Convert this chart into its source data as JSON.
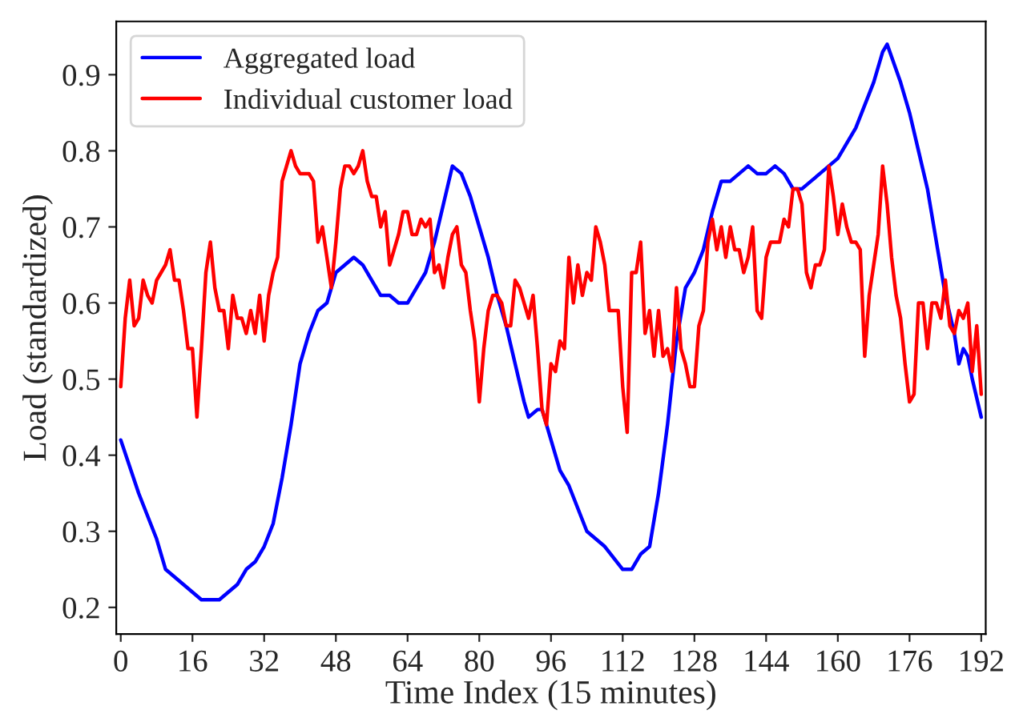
{
  "chart_data": {
    "type": "line",
    "xlabel": "Time Index (15 minutes)",
    "ylabel": "Load (standardized)",
    "xlim": [
      -1,
      193
    ],
    "xticks": [
      0,
      16,
      32,
      48,
      64,
      80,
      96,
      112,
      128,
      144,
      160,
      176,
      192
    ],
    "ylim": [
      0.165,
      0.97
    ],
    "yticks": [
      0.2,
      0.3,
      0.4,
      0.5,
      0.6,
      0.7,
      0.8,
      0.9
    ],
    "grid": false,
    "legend": "top left",
    "marker": "none",
    "line_style": "solid",
    "series": [
      {
        "name": "Aggregated load",
        "color": "#0000ff",
        "x": [
          0,
          4,
          8,
          10,
          12,
          14,
          16,
          18,
          20,
          22,
          24,
          26,
          28,
          30,
          32,
          34,
          36,
          38,
          40,
          42,
          44,
          46,
          48,
          50,
          52,
          54,
          56,
          58,
          60,
          62,
          64,
          66,
          68,
          70,
          72,
          74,
          76,
          78,
          80,
          82,
          84,
          86,
          88,
          90,
          91,
          93,
          94,
          96,
          98,
          100,
          104,
          108,
          112,
          114,
          116,
          118,
          120,
          122,
          124,
          126,
          128,
          130,
          132,
          134,
          136,
          138,
          140,
          142,
          144,
          146,
          148,
          150,
          152,
          154,
          156,
          158,
          160,
          162,
          164,
          166,
          168,
          170,
          171,
          174,
          176,
          178,
          180,
          182,
          184,
          186,
          187,
          188,
          189,
          190,
          192
        ],
        "values": [
          0.42,
          0.35,
          0.29,
          0.25,
          0.24,
          0.23,
          0.22,
          0.21,
          0.21,
          0.21,
          0.22,
          0.23,
          0.25,
          0.26,
          0.28,
          0.31,
          0.37,
          0.44,
          0.52,
          0.56,
          0.59,
          0.6,
          0.64,
          0.65,
          0.66,
          0.65,
          0.63,
          0.61,
          0.61,
          0.6,
          0.6,
          0.62,
          0.64,
          0.68,
          0.73,
          0.78,
          0.77,
          0.74,
          0.7,
          0.66,
          0.61,
          0.57,
          0.52,
          0.47,
          0.45,
          0.46,
          0.46,
          0.42,
          0.38,
          0.36,
          0.3,
          0.28,
          0.25,
          0.25,
          0.27,
          0.28,
          0.35,
          0.44,
          0.55,
          0.62,
          0.64,
          0.67,
          0.72,
          0.76,
          0.76,
          0.77,
          0.78,
          0.77,
          0.77,
          0.78,
          0.77,
          0.75,
          0.75,
          0.76,
          0.77,
          0.78,
          0.79,
          0.81,
          0.83,
          0.86,
          0.89,
          0.93,
          0.94,
          0.89,
          0.85,
          0.8,
          0.75,
          0.68,
          0.61,
          0.56,
          0.52,
          0.54,
          0.53,
          0.5,
          0.45
        ]
      },
      {
        "name": "Individual customer load",
        "color": "#ff0000",
        "x": [
          0,
          1,
          2,
          3,
          4,
          5,
          6,
          7,
          8,
          9,
          10,
          11,
          12,
          13,
          14,
          15,
          16,
          17,
          18,
          19,
          20,
          21,
          22,
          23,
          24,
          25,
          26,
          27,
          28,
          29,
          30,
          31,
          32,
          33,
          34,
          35,
          36,
          37,
          38,
          39,
          40,
          41,
          42,
          43,
          44,
          45,
          46,
          47,
          48,
          49,
          50,
          51,
          52,
          53,
          54,
          55,
          56,
          57,
          58,
          59,
          60,
          61,
          62,
          63,
          64,
          65,
          66,
          67,
          68,
          69,
          70,
          71,
          72,
          73,
          74,
          75,
          76,
          77,
          78,
          79,
          80,
          81,
          82,
          83,
          84,
          85,
          86,
          87,
          88,
          89,
          90,
          91,
          92,
          93,
          94,
          95,
          96,
          97,
          98,
          99,
          100,
          101,
          102,
          103,
          104,
          105,
          106,
          107,
          108,
          109,
          110,
          111,
          112,
          113,
          114,
          115,
          116,
          117,
          118,
          119,
          120,
          121,
          122,
          123,
          124,
          125,
          126,
          127,
          128,
          129,
          130,
          131,
          132,
          133,
          134,
          135,
          136,
          137,
          138,
          139,
          140,
          141,
          142,
          143,
          144,
          145,
          146,
          147,
          148,
          149,
          150,
          151,
          152,
          153,
          154,
          155,
          156,
          157,
          158,
          159,
          160,
          161,
          162,
          163,
          164,
          165,
          166,
          167,
          168,
          169,
          170,
          171,
          172,
          173,
          174,
          175,
          176,
          177,
          178,
          179,
          180,
          181,
          182,
          183,
          184,
          185,
          186,
          187,
          188,
          189,
          190,
          191,
          192
        ],
        "values": [
          0.49,
          0.58,
          0.63,
          0.57,
          0.58,
          0.63,
          0.61,
          0.6,
          0.63,
          0.64,
          0.65,
          0.67,
          0.63,
          0.63,
          0.59,
          0.54,
          0.54,
          0.45,
          0.54,
          0.64,
          0.68,
          0.62,
          0.59,
          0.59,
          0.54,
          0.61,
          0.58,
          0.58,
          0.56,
          0.59,
          0.56,
          0.61,
          0.55,
          0.61,
          0.64,
          0.66,
          0.76,
          0.78,
          0.8,
          0.78,
          0.77,
          0.77,
          0.77,
          0.76,
          0.68,
          0.7,
          0.66,
          0.62,
          0.68,
          0.75,
          0.78,
          0.78,
          0.77,
          0.78,
          0.8,
          0.76,
          0.74,
          0.74,
          0.7,
          0.72,
          0.65,
          0.67,
          0.69,
          0.72,
          0.72,
          0.69,
          0.69,
          0.71,
          0.7,
          0.71,
          0.64,
          0.65,
          0.62,
          0.66,
          0.69,
          0.7,
          0.65,
          0.64,
          0.59,
          0.55,
          0.47,
          0.54,
          0.59,
          0.61,
          0.61,
          0.6,
          0.57,
          0.57,
          0.63,
          0.62,
          0.6,
          0.58,
          0.61,
          0.54,
          0.46,
          0.44,
          0.52,
          0.51,
          0.55,
          0.54,
          0.66,
          0.6,
          0.65,
          0.61,
          0.64,
          0.63,
          0.7,
          0.68,
          0.65,
          0.59,
          0.59,
          0.59,
          0.49,
          0.43,
          0.64,
          0.64,
          0.68,
          0.56,
          0.59,
          0.53,
          0.59,
          0.53,
          0.54,
          0.51,
          0.62,
          0.54,
          0.52,
          0.49,
          0.49,
          0.57,
          0.59,
          0.68,
          0.71,
          0.67,
          0.7,
          0.66,
          0.7,
          0.67,
          0.67,
          0.64,
          0.66,
          0.7,
          0.59,
          0.58,
          0.66,
          0.68,
          0.68,
          0.68,
          0.71,
          0.7,
          0.75,
          0.75,
          0.73,
          0.64,
          0.62,
          0.65,
          0.65,
          0.67,
          0.78,
          0.74,
          0.69,
          0.73,
          0.7,
          0.68,
          0.68,
          0.67,
          0.53,
          0.61,
          0.65,
          0.69,
          0.78,
          0.73,
          0.66,
          0.61,
          0.58,
          0.52,
          0.47,
          0.48,
          0.6,
          0.6,
          0.54,
          0.6,
          0.6,
          0.58,
          0.63,
          0.57,
          0.56,
          0.59,
          0.58,
          0.6,
          0.51,
          0.57,
          0.48
        ]
      }
    ]
  }
}
